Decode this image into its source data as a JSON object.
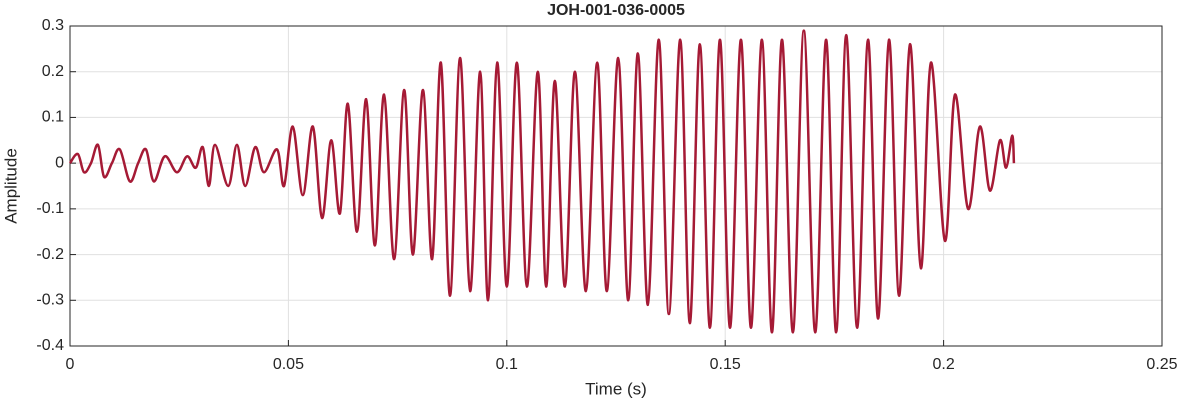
{
  "chart_data": {
    "type": "line",
    "title": "JOH-001-036-0005",
    "xlabel": "Time (s)",
    "ylabel": "Amplitude",
    "xlim": [
      0,
      0.25
    ],
    "xticks": [
      0,
      0.05,
      0.1,
      0.15,
      0.2,
      0.25
    ],
    "ylim": [
      -0.4,
      0.3
    ],
    "yticks": [
      -0.4,
      -0.3,
      -0.2,
      -0.1,
      0,
      0.1,
      0.2,
      0.3
    ],
    "grid": true,
    "x": [
      0,
      0.0018,
      0.0032,
      0.0048,
      0.0064,
      0.0078,
      0.0096,
      0.0114,
      0.0137,
      0.0156,
      0.0174,
      0.0192,
      0.0217,
      0.0245,
      0.0268,
      0.0288,
      0.0304,
      0.0318,
      0.0332,
      0.0362,
      0.0382,
      0.0401,
      0.0424,
      0.0444,
      0.0474,
      0.049,
      0.051,
      0.0533,
      0.0556,
      0.0577,
      0.0598,
      0.0618,
      0.0636,
      0.0657,
      0.0678,
      0.0698,
      0.0719,
      0.0742,
      0.0765,
      0.0785,
      0.0808,
      0.0829,
      0.0849,
      0.087,
      0.0893,
      0.0916,
      0.0939,
      0.0957,
      0.0978,
      0.1,
      0.1023,
      0.1046,
      0.1071,
      0.109,
      0.111,
      0.1133,
      0.1156,
      0.1181,
      0.1207,
      0.1229,
      0.1255,
      0.1278,
      0.13,
      0.1323,
      0.1348,
      0.1371,
      0.1397,
      0.1419,
      0.1442,
      0.1465,
      0.1488,
      0.1511,
      0.1536,
      0.1559,
      0.1584,
      0.1607,
      0.163,
      0.1655,
      0.168,
      0.1706,
      0.1731,
      0.1754,
      0.1777,
      0.1802,
      0.1827,
      0.185,
      0.1875,
      0.1898,
      0.1923,
      0.1948,
      0.1971,
      0.2003,
      0.2026,
      0.2056,
      0.2083,
      0.2106,
      0.2129,
      0.2143,
      0.2157,
      0.2161
    ],
    "series": [
      {
        "color": "#a51a35",
        "values": [
          0,
          0.02,
          -0.02,
          0.0,
          0.04,
          -0.03,
          0.0,
          0.03,
          -0.04,
          0.0,
          0.03,
          -0.04,
          0.015,
          -0.02,
          0.015,
          -0.01,
          0.035,
          -0.05,
          0.04,
          -0.05,
          0.04,
          -0.05,
          0.035,
          -0.02,
          0.03,
          -0.05,
          0.08,
          -0.07,
          0.08,
          -0.12,
          0.05,
          -0.11,
          0.13,
          -0.15,
          0.14,
          -0.18,
          0.15,
          -0.21,
          0.16,
          -0.2,
          0.16,
          -0.21,
          0.22,
          -0.29,
          0.23,
          -0.28,
          0.2,
          -0.3,
          0.22,
          -0.27,
          0.22,
          -0.27,
          0.2,
          -0.27,
          0.18,
          -0.27,
          0.2,
          -0.28,
          0.22,
          -0.28,
          0.23,
          -0.3,
          0.24,
          -0.31,
          0.27,
          -0.33,
          0.27,
          -0.35,
          0.26,
          -0.36,
          0.27,
          -0.36,
          0.27,
          -0.36,
          0.27,
          -0.37,
          0.27,
          -0.37,
          0.29,
          -0.37,
          0.27,
          -0.37,
          0.28,
          -0.36,
          0.27,
          -0.34,
          0.27,
          -0.29,
          0.26,
          -0.23,
          0.22,
          -0.17,
          0.15,
          -0.1,
          0.08,
          -0.06,
          0.05,
          -0.01,
          0.06,
          0.0
        ]
      }
    ]
  }
}
